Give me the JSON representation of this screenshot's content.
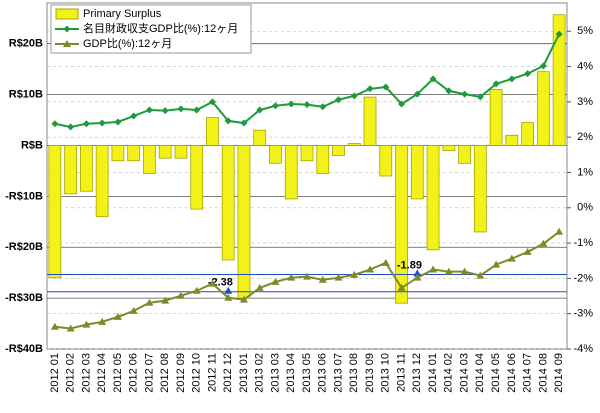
{
  "chart_data": {
    "type": "bar-line",
    "categories": [
      "2012 01",
      "2012 02",
      "2012 03",
      "2012 04",
      "2012 05",
      "2012 06",
      "2012 07",
      "2012 08",
      "2012 09",
      "2012 10",
      "2012 11",
      "2012 12",
      "2013 01",
      "2013 02",
      "2013 03",
      "2013 04",
      "2013 05",
      "2013 06",
      "2013 07",
      "2013 08",
      "2013 09",
      "2013 10",
      "2013 11",
      "2013 12",
      "2014 01",
      "2014 02",
      "2014 03",
      "2014 04",
      "2014 05",
      "2014 06",
      "2014 07",
      "2014 08",
      "2014 09"
    ],
    "series": [
      {
        "name": "Primary Surplus",
        "type": "bar",
        "color": "#f2f21a",
        "axis": "y",
        "values": [
          -26,
          -9.5,
          -9,
          -14,
          -3,
          -3,
          -5.5,
          -2.5,
          -2.5,
          -12.5,
          5.5,
          -22.5,
          -30,
          3,
          -3.5,
          -10.5,
          -3,
          -5.5,
          -2,
          0.4,
          9.5,
          -6,
          -31,
          -10.5,
          -20.5,
          -1,
          -3.5,
          -17,
          11,
          2,
          4.5,
          14.5,
          25.7
        ]
      },
      {
        "name": "名目財政収支GDP比(%):12ヶ月",
        "type": "line",
        "marker": "diamond",
        "color": "#1e9a3c",
        "axis": "y2",
        "values": [
          2.38,
          2.29,
          2.38,
          2.4,
          2.43,
          2.6,
          2.77,
          2.75,
          2.8,
          2.77,
          3.0,
          2.46,
          2.4,
          2.77,
          2.89,
          2.94,
          2.92,
          2.86,
          3.06,
          3.17,
          3.37,
          3.42,
          2.94,
          3.22,
          3.65,
          3.31,
          3.22,
          3.14,
          3.51,
          3.65,
          3.8,
          4.02,
          4.92
        ]
      },
      {
        "name": "GDP比(%):12ヶ月",
        "type": "line",
        "marker": "triangle",
        "color": "#7d8a2a",
        "axis": "y2",
        "values": [
          -3.37,
          -3.42,
          -3.31,
          -3.23,
          -3.09,
          -2.92,
          -2.69,
          -2.63,
          -2.49,
          -2.35,
          -2.15,
          -2.55,
          -2.6,
          -2.27,
          -2.1,
          -1.98,
          -1.95,
          -2.04,
          -1.98,
          -1.9,
          -1.75,
          -1.56,
          -2.27,
          -1.98,
          -1.75,
          -1.81,
          -1.81,
          -1.92,
          -1.61,
          -1.44,
          -1.25,
          -1.02,
          -0.68
        ]
      }
    ],
    "ylim": [
      -40,
      28
    ],
    "yticks": [
      {
        "value": -40,
        "label": "-R$40B"
      },
      {
        "value": -30,
        "label": "-R$30B"
      },
      {
        "value": -20,
        "label": "-R$20B"
      },
      {
        "value": -10,
        "label": "-R$10B"
      },
      {
        "value": 0,
        "label": "R$B"
      },
      {
        "value": 10,
        "label": "R$10B"
      },
      {
        "value": 20,
        "label": "R$20B"
      }
    ],
    "y2lim": [
      -4,
      5.8
    ],
    "y2ticks": [
      {
        "value": -4,
        "label": "-4%"
      },
      {
        "value": -3,
        "label": "-3%"
      },
      {
        "value": -2,
        "label": "-2%"
      },
      {
        "value": -1,
        "label": "-1%"
      },
      {
        "value": 0,
        "label": "0%"
      },
      {
        "value": 1,
        "label": "1%"
      },
      {
        "value": 2,
        "label": "2%"
      },
      {
        "value": 3,
        "label": "3%"
      },
      {
        "value": 4,
        "label": "4%"
      },
      {
        "value": 5,
        "label": "5%"
      }
    ],
    "grid": true,
    "legend": "top-left",
    "annotations": [
      {
        "label": "-2.38",
        "value": -2.38,
        "category": "2012 12",
        "color": "#1f4fbf"
      },
      {
        "label": "-1.89",
        "value": -1.89,
        "category": "2013 12",
        "color": "#1f4fbf"
      }
    ]
  }
}
